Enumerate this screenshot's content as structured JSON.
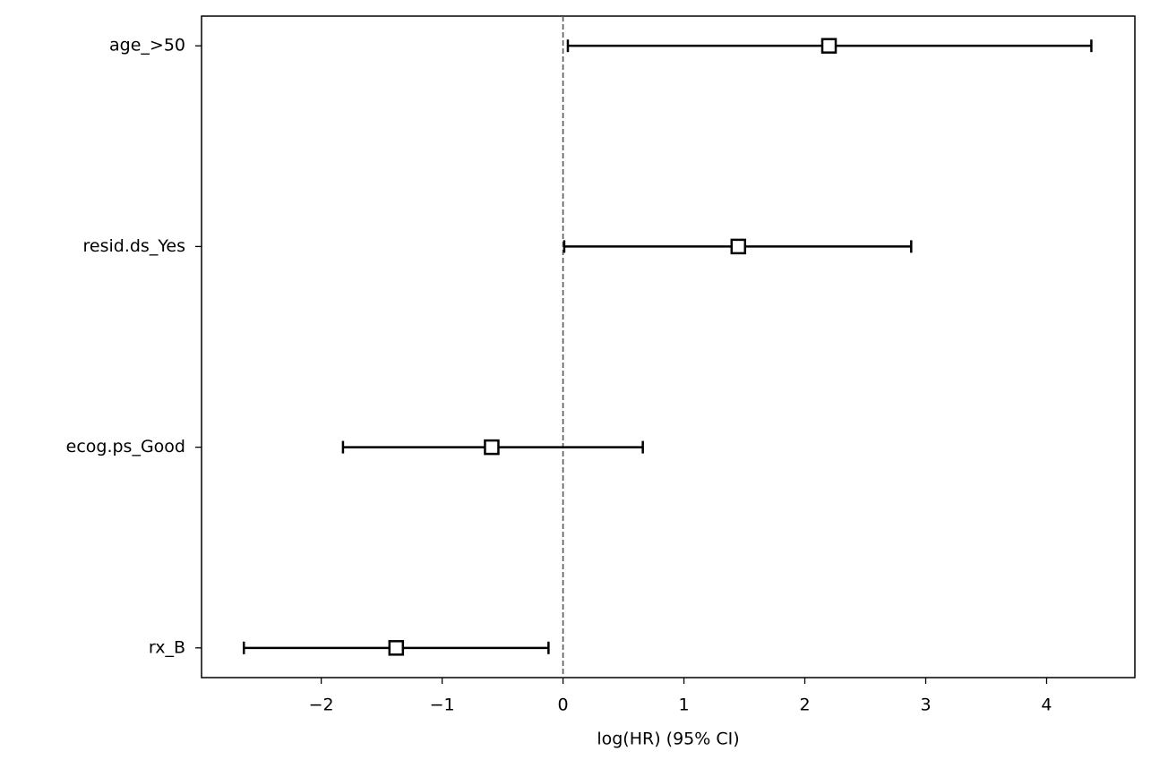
{
  "chart_data": {
    "type": "forest",
    "xlabel": "log(HR) (95% CI)",
    "categories": [
      "rx_B",
      "ecog.ps_Good",
      "resid.ds_Yes",
      "age_>50"
    ],
    "values": [
      -1.38,
      -0.59,
      1.45,
      2.2
    ],
    "lower": [
      -2.64,
      -1.82,
      0.01,
      0.04
    ],
    "upper": [
      -0.12,
      0.66,
      2.88,
      4.37
    ],
    "color": "#000000",
    "xlim": [
      -2.99,
      4.73
    ],
    "xticks": [
      {
        "value": -2,
        "label": "−2"
      },
      {
        "value": -1,
        "label": "−1"
      },
      0,
      1,
      2,
      3,
      4
    ],
    "vline": 0
  }
}
